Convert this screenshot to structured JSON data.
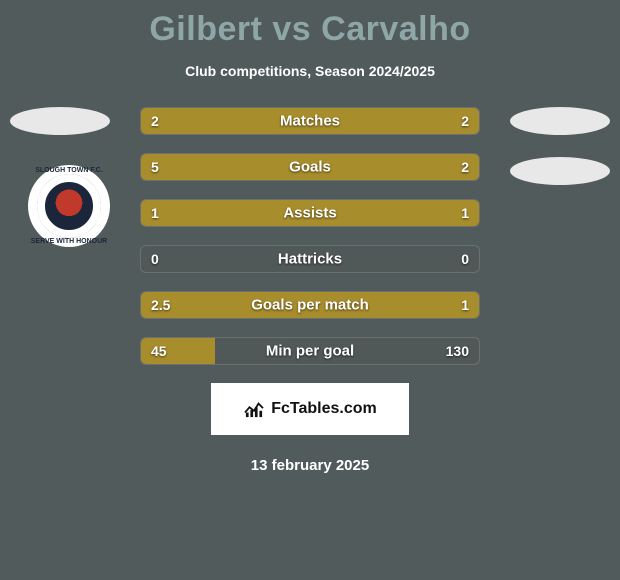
{
  "title": "Gilbert vs Carvalho",
  "subtitle": "Club competitions, Season 2024/2025",
  "colors": {
    "background": "#525b5b",
    "title": "#8fa6a6",
    "bar_fill": "#a88d2d",
    "bar_bg": "#505858",
    "shape": "#e8e8e8",
    "crest_bg": "#ffffff",
    "text": "#ffffff"
  },
  "crest": {
    "top_text": "SLOUGH TOWN F.C.",
    "bottom_text": "SERVE WITH HONOUR"
  },
  "bars": [
    {
      "label": "Matches",
      "left_val": "2",
      "right_val": "2",
      "left_pct": 100,
      "right_pct": 0
    },
    {
      "label": "Goals",
      "left_val": "5",
      "right_val": "2",
      "left_pct": 66,
      "right_pct": 34
    },
    {
      "label": "Assists",
      "left_val": "1",
      "right_val": "1",
      "left_pct": 100,
      "right_pct": 0
    },
    {
      "label": "Hattricks",
      "left_val": "0",
      "right_val": "0",
      "left_pct": 0,
      "right_pct": 0
    },
    {
      "label": "Goals per match",
      "left_val": "2.5",
      "right_val": "1",
      "left_pct": 100,
      "right_pct": 0
    },
    {
      "label": "Min per goal",
      "left_val": "45",
      "right_val": "130",
      "left_pct": 22,
      "right_pct": 0
    }
  ],
  "branding": "FcTables.com",
  "date": "13 february 2025"
}
